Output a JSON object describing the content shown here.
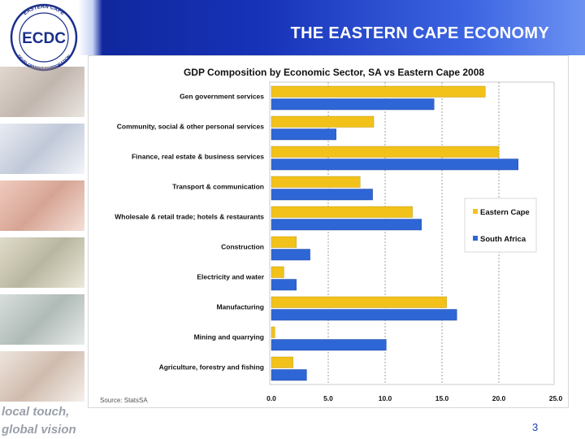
{
  "slide": {
    "title": "THE EASTERN CAPE ECONOMY",
    "tagline_line1": "local touch,",
    "tagline_line2": "global vision",
    "page_number": "3",
    "logo": {
      "text": "ECDC",
      "ring_top": "EASTERN CAPE",
      "ring_bottom": "DEVELOPMENT CORPORATION"
    }
  },
  "colors": {
    "eastern_cape": "#f2c21b",
    "south_africa": "#2f66d6",
    "header_dark": "#0b1f8c",
    "header_light": "#6b92f2"
  },
  "chart_data": {
    "type": "bar",
    "orientation": "horizontal",
    "title": "GDP Composition by  Economic Sector,  SA vs Eastern Cape 2008",
    "categories": [
      "Gen government services",
      "Community, social & other personal services",
      "Finance, real estate & business services",
      "Transport  & communication",
      "Wholesale & retail trade; hotels & restaurants",
      "Construction",
      "Electricity and water",
      "Manufacturing",
      "Mining and quarrying",
      "Agriculture, forestry and fishing"
    ],
    "series": [
      {
        "name": "Eastern Cape",
        "values": [
          18.8,
          9.0,
          20.0,
          7.8,
          12.4,
          2.2,
          1.1,
          15.4,
          0.3,
          1.9
        ]
      },
      {
        "name": "South Africa",
        "values": [
          14.3,
          5.7,
          21.7,
          8.9,
          13.2,
          3.4,
          2.2,
          16.3,
          10.1,
          3.1
        ]
      }
    ],
    "xlim": [
      0,
      25
    ],
    "ticks": [
      "0.0",
      "5.0",
      "10.0",
      "15.0",
      "20.0",
      "25.0"
    ],
    "grid": true,
    "legend_position": "right",
    "source": "Source: StatsSA"
  }
}
